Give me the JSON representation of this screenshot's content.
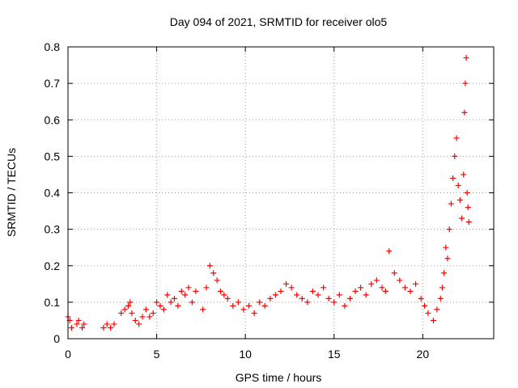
{
  "chart_data": {
    "type": "scatter",
    "title": "Day 094 of 2021, SRMTID for receiver olo5",
    "xlabel": "GPS time / hours",
    "ylabel": "SRMTID / TECUs",
    "xlim": [
      0,
      24
    ],
    "ylim": [
      0,
      0.8
    ],
    "xticks": [
      0,
      5,
      10,
      15,
      20
    ],
    "xtick_labels": [
      "0",
      "5",
      "10",
      "15",
      "20"
    ],
    "yticks": [
      0,
      0.1,
      0.2,
      0.3,
      0.4,
      0.5,
      0.6,
      0.7,
      0.8
    ],
    "ytick_labels": [
      "0",
      "0.1",
      "0.2",
      "0.3",
      "0.4",
      "0.5",
      "0.6",
      "0.7",
      "0.8"
    ],
    "grid": true,
    "marker": "plus",
    "color": "#ff0000",
    "series": [
      {
        "name": "SRMTID",
        "x": [
          0.0,
          0.1,
          0.2,
          0.5,
          0.6,
          0.8,
          0.9,
          2.0,
          2.2,
          2.4,
          2.6,
          3.0,
          3.2,
          3.4,
          3.5,
          3.6,
          3.8,
          4.0,
          4.2,
          4.4,
          4.6,
          4.8,
          5.0,
          5.2,
          5.4,
          5.6,
          5.8,
          6.0,
          6.2,
          6.4,
          6.6,
          6.8,
          7.0,
          7.2,
          7.6,
          7.8,
          8.0,
          8.2,
          8.4,
          8.6,
          8.8,
          9.0,
          9.3,
          9.6,
          9.9,
          10.2,
          10.5,
          10.8,
          11.1,
          11.4,
          11.7,
          12.0,
          12.3,
          12.6,
          12.9,
          13.2,
          13.5,
          13.8,
          14.1,
          14.4,
          14.7,
          15.0,
          15.3,
          15.6,
          15.9,
          16.2,
          16.5,
          16.8,
          17.1,
          17.4,
          17.7,
          17.9,
          18.1,
          18.4,
          18.7,
          19.0,
          19.3,
          19.6,
          19.9,
          20.1,
          20.3,
          20.6,
          20.8,
          21.0,
          21.1,
          21.2,
          21.3,
          21.4,
          21.5,
          21.6,
          21.7,
          21.8,
          21.9,
          22.0,
          22.1,
          22.2,
          22.3,
          22.35,
          22.4,
          22.45,
          22.5,
          22.55,
          22.6
        ],
        "y": [
          0.06,
          0.05,
          0.03,
          0.04,
          0.05,
          0.03,
          0.04,
          0.03,
          0.04,
          0.03,
          0.04,
          0.07,
          0.08,
          0.09,
          0.1,
          0.07,
          0.05,
          0.04,
          0.06,
          0.08,
          0.06,
          0.07,
          0.1,
          0.09,
          0.08,
          0.12,
          0.1,
          0.11,
          0.09,
          0.13,
          0.12,
          0.14,
          0.1,
          0.13,
          0.08,
          0.14,
          0.2,
          0.18,
          0.16,
          0.13,
          0.12,
          0.11,
          0.09,
          0.1,
          0.08,
          0.09,
          0.07,
          0.1,
          0.09,
          0.11,
          0.12,
          0.13,
          0.15,
          0.14,
          0.12,
          0.11,
          0.1,
          0.13,
          0.12,
          0.14,
          0.11,
          0.1,
          0.12,
          0.09,
          0.11,
          0.13,
          0.14,
          0.12,
          0.15,
          0.16,
          0.14,
          0.13,
          0.24,
          0.18,
          0.16,
          0.14,
          0.13,
          0.15,
          0.11,
          0.09,
          0.07,
          0.05,
          0.08,
          0.11,
          0.14,
          0.18,
          0.25,
          0.22,
          0.3,
          0.37,
          0.44,
          0.5,
          0.55,
          0.42,
          0.38,
          0.33,
          0.45,
          0.62,
          0.7,
          0.77,
          0.4,
          0.36,
          0.32
        ]
      }
    ]
  }
}
